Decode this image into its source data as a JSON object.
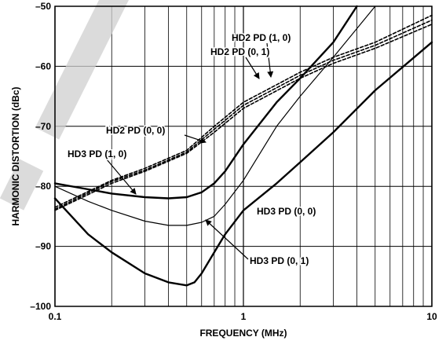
{
  "chart_data": {
    "type": "line",
    "xlabel": "FREQUENCY (MHz)",
    "ylabel": "HARMONIC DISTORTION (dBc)",
    "x_scale": "log",
    "xlim": [
      0.1,
      10
    ],
    "ylim": [
      -100,
      -50
    ],
    "x_ticks": [
      {
        "value": 0.1,
        "label": "0.1"
      },
      {
        "value": 1,
        "label": "1"
      },
      {
        "value": 10,
        "label": "10"
      }
    ],
    "y_ticks": [
      {
        "value": -50,
        "label": "–50"
      },
      {
        "value": -60,
        "label": "–60"
      },
      {
        "value": -70,
        "label": "–70"
      },
      {
        "value": -80,
        "label": "–80"
      },
      {
        "value": -90,
        "label": "–90"
      },
      {
        "value": -100,
        "label": "–100"
      }
    ],
    "grid": true,
    "series": [
      {
        "name": "HD2 PD (1, 0)",
        "style": "dashed",
        "color": "#000000",
        "x": [
          0.1,
          0.2,
          0.3,
          0.5,
          0.7,
          1,
          2,
          3,
          5,
          10
        ],
        "y": [
          -83.5,
          -79,
          -77,
          -74,
          -70,
          -66,
          -61,
          -58.5,
          -56,
          -51.5
        ]
      },
      {
        "name": "HD2 PD (0, 1)",
        "style": "dashed",
        "color": "#000000",
        "x": [
          0.1,
          0.2,
          0.3,
          0.5,
          0.7,
          1,
          2,
          3,
          5,
          10
        ],
        "y": [
          -84,
          -79.5,
          -77.5,
          -74.5,
          -71,
          -67,
          -62,
          -59.5,
          -57,
          -53
        ]
      },
      {
        "name": "HD2 PD (0, 0)",
        "style": "dashed",
        "color": "#000000",
        "x": [
          0.1,
          0.2,
          0.3,
          0.5,
          0.7,
          1,
          2,
          3,
          5,
          10
        ],
        "y": [
          -83.8,
          -79.2,
          -77.3,
          -74.3,
          -70.5,
          -66.5,
          -61.5,
          -59,
          -56.5,
          -52.3
        ]
      },
      {
        "name": "HD3 PD (1, 0)",
        "style": "solid-thick",
        "color": "#000000",
        "x": [
          0.1,
          0.15,
          0.2,
          0.3,
          0.4,
          0.5,
          0.6,
          0.7,
          0.8,
          1,
          1.5,
          2,
          3,
          4
        ],
        "y": [
          -79.5,
          -80.5,
          -81.2,
          -81.8,
          -82,
          -81.8,
          -81,
          -79.5,
          -77.5,
          -73,
          -66,
          -62,
          -56,
          -50
        ]
      },
      {
        "name": "HD3 PD (0, 1)",
        "style": "solid-thin",
        "color": "#000000",
        "x": [
          0.1,
          0.15,
          0.2,
          0.3,
          0.4,
          0.5,
          0.6,
          0.7,
          0.8,
          1,
          1.5,
          2,
          3,
          5
        ],
        "y": [
          -80,
          -82.5,
          -84,
          -85.8,
          -86.5,
          -86.5,
          -86,
          -85,
          -83,
          -79,
          -70,
          -65,
          -58.5,
          -50
        ]
      },
      {
        "name": "HD3 PD (0, 0)",
        "style": "solid-thick",
        "color": "#000000",
        "x": [
          0.1,
          0.15,
          0.2,
          0.3,
          0.4,
          0.5,
          0.55,
          0.6,
          0.7,
          0.8,
          1,
          1.5,
          2,
          3,
          5,
          10
        ],
        "y": [
          -82,
          -88,
          -91,
          -94.5,
          -96,
          -96.5,
          -96,
          -94.5,
          -91,
          -88,
          -84,
          -79.5,
          -76,
          -71,
          -64,
          -56
        ]
      }
    ],
    "annotations": [
      {
        "text": "HD2 PD (1, 0)"
      },
      {
        "text": "HD2 PD (0, 1)"
      },
      {
        "text": "HD2 PD (0, 0)"
      },
      {
        "text": "HD3 PD (1, 0)"
      },
      {
        "text": "HD3 PD (0, 0)"
      },
      {
        "text": "HD3 PD (0, 1)"
      }
    ]
  }
}
